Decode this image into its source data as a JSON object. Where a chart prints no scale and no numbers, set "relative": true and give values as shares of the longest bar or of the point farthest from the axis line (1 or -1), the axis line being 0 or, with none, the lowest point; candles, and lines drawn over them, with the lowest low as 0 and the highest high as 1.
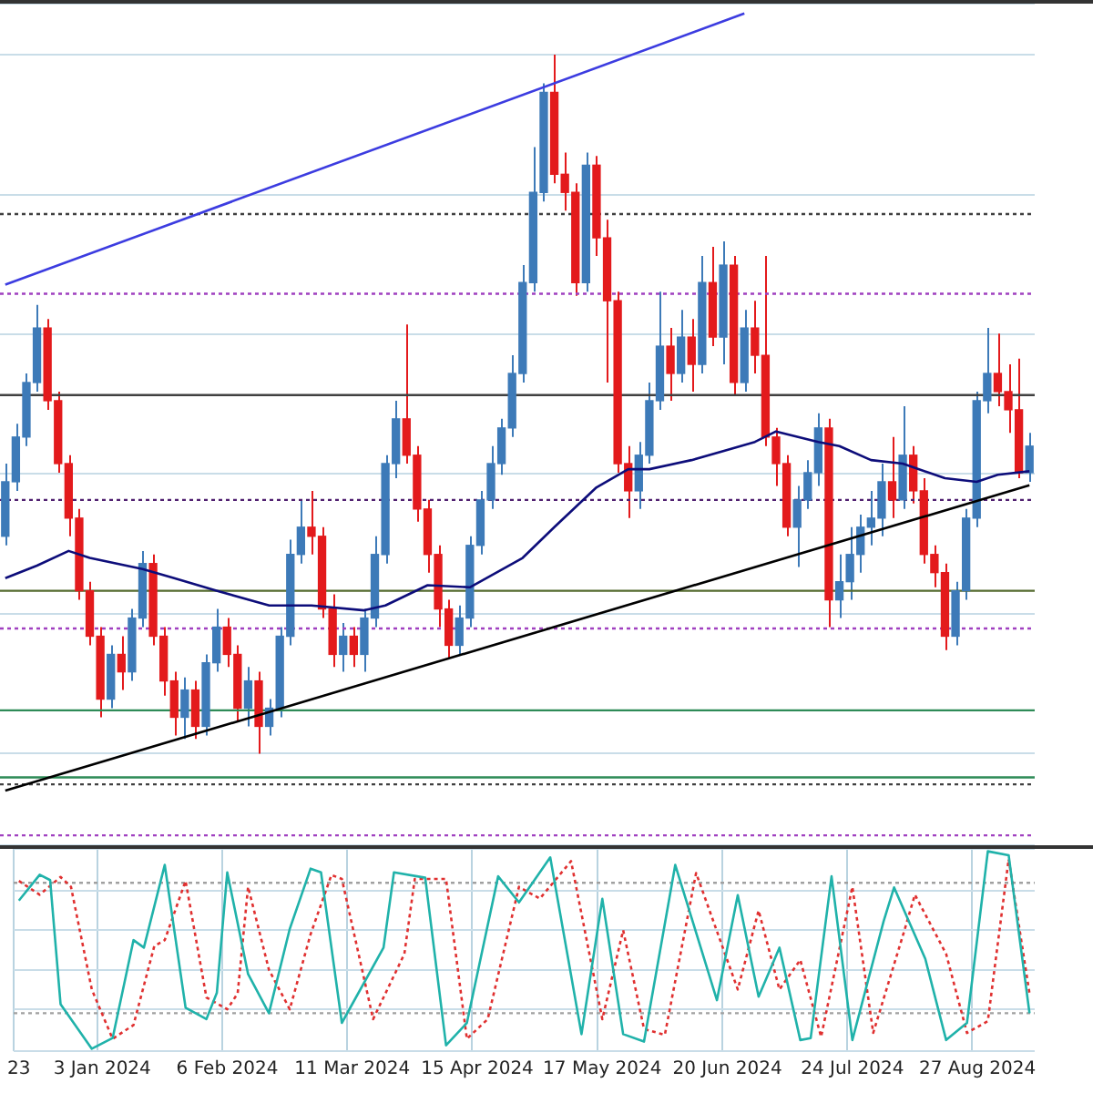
{
  "chart_data": [
    {
      "type": "candlestick",
      "relative": true,
      "grid": true,
      "legend": false,
      "tick_labels": false,
      "marker": "none",
      "categories": [
        null,
        null,
        null,
        null,
        null,
        null,
        null,
        null,
        null,
        null,
        null,
        null,
        null,
        null,
        null,
        null,
        null,
        null,
        null,
        null,
        null,
        null,
        null,
        null,
        null,
        null,
        null,
        null,
        null,
        null,
        null,
        null,
        null,
        null,
        null,
        null,
        null,
        null,
        null,
        null,
        null,
        null,
        null,
        null,
        null,
        null,
        null,
        null,
        null,
        null,
        null,
        null,
        null,
        null,
        null,
        null,
        null,
        null,
        null,
        null,
        null,
        null,
        null,
        null,
        null,
        null,
        null,
        null,
        null,
        null,
        null,
        null,
        null,
        null,
        null,
        null,
        null,
        null,
        null,
        null,
        null,
        null,
        null,
        null,
        null,
        null,
        null,
        null,
        null,
        null,
        null,
        null,
        null,
        null,
        null,
        null,
        null,
        null
      ],
      "ohlc": [
        [
          0.311,
          0.415,
          0.298,
          0.389
        ],
        [
          0.389,
          0.472,
          0.376,
          0.453
        ],
        [
          0.453,
          0.544,
          0.44,
          0.531
        ],
        [
          0.531,
          0.642,
          0.518,
          0.609
        ],
        [
          0.609,
          0.622,
          0.492,
          0.505
        ],
        [
          0.505,
          0.518,
          0.402,
          0.415
        ],
        [
          0.415,
          0.427,
          0.311,
          0.337
        ],
        [
          0.337,
          0.35,
          0.22,
          0.233
        ],
        [
          0.233,
          0.246,
          0.155,
          0.168
        ],
        [
          0.168,
          0.181,
          0.052,
          0.078
        ],
        [
          0.078,
          0.155,
          0.065,
          0.142
        ],
        [
          0.142,
          0.168,
          0.091,
          0.117
        ],
        [
          0.117,
          0.207,
          0.104,
          0.194
        ],
        [
          0.194,
          0.29,
          0.181,
          0.272
        ],
        [
          0.272,
          0.285,
          0.155,
          0.168
        ],
        [
          0.168,
          0.181,
          0.083,
          0.104
        ],
        [
          0.104,
          0.117,
          0.026,
          0.052
        ],
        [
          0.052,
          0.109,
          0.021,
          0.091
        ],
        [
          0.091,
          0.104,
          0.021,
          0.039
        ],
        [
          0.039,
          0.142,
          0.026,
          0.13
        ],
        [
          0.13,
          0.207,
          0.117,
          0.181
        ],
        [
          0.181,
          0.194,
          0.124,
          0.142
        ],
        [
          0.142,
          0.155,
          0.047,
          0.065
        ],
        [
          0.065,
          0.124,
          0.039,
          0.104
        ],
        [
          0.104,
          0.117,
          0,
          0.039
        ],
        [
          0.039,
          0.078,
          0.026,
          0.065
        ],
        [
          0.065,
          0.181,
          0.052,
          0.168
        ],
        [
          0.168,
          0.306,
          0.155,
          0.285
        ],
        [
          0.285,
          0.363,
          0.272,
          0.324
        ],
        [
          0.324,
          0.376,
          0.285,
          0.311
        ],
        [
          0.311,
          0.324,
          0.194,
          0.207
        ],
        [
          0.207,
          0.228,
          0.124,
          0.142
        ],
        [
          0.142,
          0.187,
          0.117,
          0.168
        ],
        [
          0.168,
          0.181,
          0.124,
          0.142
        ],
        [
          0.142,
          0.207,
          0.117,
          0.194
        ],
        [
          0.194,
          0.311,
          0.181,
          0.285
        ],
        [
          0.285,
          0.427,
          0.272,
          0.415
        ],
        [
          0.415,
          0.505,
          0.394,
          0.479
        ],
        [
          0.479,
          0.614,
          0.415,
          0.427
        ],
        [
          0.427,
          0.44,
          0.332,
          0.35
        ],
        [
          0.35,
          0.363,
          0.259,
          0.285
        ],
        [
          0.285,
          0.298,
          0.181,
          0.207
        ],
        [
          0.207,
          0.22,
          0.137,
          0.155
        ],
        [
          0.155,
          0.212,
          0.14,
          0.194
        ],
        [
          0.194,
          0.311,
          0.181,
          0.298
        ],
        [
          0.298,
          0.376,
          0.285,
          0.363
        ],
        [
          0.363,
          0.44,
          0.35,
          0.415
        ],
        [
          0.415,
          0.479,
          0.399,
          0.466
        ],
        [
          0.466,
          0.57,
          0.453,
          0.544
        ],
        [
          0.544,
          0.699,
          0.531,
          0.674
        ],
        [
          0.674,
          0.868,
          0.661,
          0.803
        ],
        [
          0.803,
          0.959,
          0.79,
          0.946
        ],
        [
          0.946,
          1,
          0.816,
          0.829
        ],
        [
          0.829,
          0.86,
          0.777,
          0.803
        ],
        [
          0.803,
          0.816,
          0.655,
          0.674
        ],
        [
          0.674,
          0.86,
          0.661,
          0.842
        ],
        [
          0.842,
          0.855,
          0.712,
          0.738
        ],
        [
          0.738,
          0.764,
          0.531,
          0.648
        ],
        [
          0.648,
          0.661,
          0.402,
          0.415
        ],
        [
          0.415,
          0.44,
          0.337,
          0.376
        ],
        [
          0.376,
          0.446,
          0.35,
          0.427
        ],
        [
          0.427,
          0.531,
          0.415,
          0.505
        ],
        [
          0.505,
          0.661,
          0.492,
          0.583
        ],
        [
          0.583,
          0.609,
          0.505,
          0.544
        ],
        [
          0.544,
          0.635,
          0.531,
          0.596
        ],
        [
          0.596,
          0.622,
          0.518,
          0.557
        ],
        [
          0.557,
          0.712,
          0.544,
          0.674
        ],
        [
          0.674,
          0.725,
          0.583,
          0.596
        ],
        [
          0.596,
          0.733,
          0.557,
          0.699
        ],
        [
          0.699,
          0.712,
          0.513,
          0.531
        ],
        [
          0.531,
          0.635,
          0.518,
          0.609
        ],
        [
          0.609,
          0.648,
          0.544,
          0.57
        ],
        [
          0.57,
          0.712,
          0.44,
          0.453
        ],
        [
          0.453,
          0.466,
          0.383,
          0.415
        ],
        [
          0.415,
          0.427,
          0.311,
          0.324
        ],
        [
          0.324,
          0.383,
          0.267,
          0.363
        ],
        [
          0.363,
          0.42,
          0.35,
          0.402
        ],
        [
          0.402,
          0.487,
          0.383,
          0.466
        ],
        [
          0.466,
          0.479,
          0.181,
          0.22
        ],
        [
          0.22,
          0.285,
          0.194,
          0.246
        ],
        [
          0.246,
          0.324,
          0.22,
          0.285
        ],
        [
          0.285,
          0.342,
          0.259,
          0.324
        ],
        [
          0.324,
          0.376,
          0.298,
          0.337
        ],
        [
          0.337,
          0.415,
          0.311,
          0.389
        ],
        [
          0.389,
          0.453,
          0.337,
          0.363
        ],
        [
          0.363,
          0.497,
          0.35,
          0.427
        ],
        [
          0.427,
          0.44,
          0.358,
          0.376
        ],
        [
          0.376,
          0.394,
          0.272,
          0.285
        ],
        [
          0.285,
          0.298,
          0.238,
          0.259
        ],
        [
          0.259,
          0.272,
          0.148,
          0.168
        ],
        [
          0.168,
          0.246,
          0.155,
          0.233
        ],
        [
          0.233,
          0.35,
          0.22,
          0.337
        ],
        [
          0.337,
          0.518,
          0.324,
          0.505
        ],
        [
          0.505,
          0.609,
          0.487,
          0.544
        ],
        [
          0.544,
          0.601,
          0.497,
          0.518
        ],
        [
          0.518,
          0.557,
          0.459,
          0.492
        ],
        [
          0.492,
          0.565,
          0.394,
          0.402
        ],
        [
          0.402,
          0.459,
          0.389,
          0.44
        ]
      ],
      "colors": [
        "#3d7ab8",
        "#3d7ab8",
        "#3d7ab8",
        "#3d7ab8",
        "#e31a1c",
        "#e31a1c",
        "#e31a1c",
        "#e31a1c",
        "#e31a1c",
        "#e31a1c",
        "#3d7ab8",
        "#e31a1c",
        "#3d7ab8",
        "#3d7ab8",
        "#e31a1c",
        "#e31a1c",
        "#e31a1c",
        "#3d7ab8",
        "#e31a1c",
        "#3d7ab8",
        "#3d7ab8",
        "#e31a1c",
        "#e31a1c",
        "#3d7ab8",
        "#e31a1c",
        "#3d7ab8",
        "#3d7ab8",
        "#3d7ab8",
        "#3d7ab8",
        "#e31a1c",
        "#e31a1c",
        "#e31a1c",
        "#3d7ab8",
        "#e31a1c",
        "#3d7ab8",
        "#3d7ab8",
        "#3d7ab8",
        "#3d7ab8",
        "#e31a1c",
        "#e31a1c",
        "#e31a1c",
        "#e31a1c",
        "#e31a1c",
        "#3d7ab8",
        "#3d7ab8",
        "#3d7ab8",
        "#3d7ab8",
        "#3d7ab8",
        "#3d7ab8",
        "#3d7ab8",
        "#3d7ab8",
        "#3d7ab8",
        "#e31a1c",
        "#e31a1c",
        "#e31a1c",
        "#3d7ab8",
        "#e31a1c",
        "#e31a1c",
        "#e31a1c",
        "#e31a1c",
        "#3d7ab8",
        "#3d7ab8",
        "#3d7ab8",
        "#e31a1c",
        "#3d7ab8",
        "#e31a1c",
        "#3d7ab8",
        "#e31a1c",
        "#3d7ab8",
        "#e31a1c",
        "#3d7ab8",
        "#e31a1c",
        "#e31a1c",
        "#e31a1c",
        "#e31a1c",
        "#3d7ab8",
        "#3d7ab8",
        "#3d7ab8",
        "#e31a1c",
        "#3d7ab8",
        "#3d7ab8",
        "#3d7ab8",
        "#3d7ab8",
        "#3d7ab8",
        "#e31a1c",
        "#3d7ab8",
        "#e31a1c",
        "#e31a1c",
        "#e31a1c",
        "#e31a1c",
        "#3d7ab8",
        "#3d7ab8",
        "#3d7ab8",
        "#3d7ab8",
        "#e31a1c",
        "#e31a1c",
        "#e31a1c",
        "#3d7ab8"
      ],
      "series": [
        {
          "type": "line",
          "color": "#0d0d7a",
          "values": [
            0.251,
            null,
            null,
            0.269,
            null,
            null,
            0.29,
            null,
            0.28,
            null,
            null,
            null,
            null,
            0.264,
            null,
            null,
            0.251,
            null,
            null,
            null,
            0.233,
            null,
            null,
            null,
            null,
            0.212,
            null,
            null,
            null,
            0.212,
            null,
            null,
            null,
            null,
            0.205,
            null,
            0.212,
            null,
            null,
            null,
            0.241,
            null,
            null,
            null,
            0.238,
            null,
            null,
            null,
            null,
            0.28,
            null,
            null,
            0.324,
            null,
            null,
            null,
            0.381,
            null,
            null,
            0.407,
            null,
            0.407,
            null,
            null,
            null,
            0.42,
            null,
            null,
            0.433,
            null,
            null,
            0.446,
            null,
            0.461,
            null,
            null,
            null,
            0.446,
            null,
            0.44,
            null,
            null,
            0.42,
            null,
            null,
            0.415,
            null,
            null,
            null,
            0.394,
            null,
            null,
            0.389,
            null,
            0.399,
            null,
            null,
            0.404
          ]
        },
        {
          "type": "line",
          "color": "#000000",
          "values": [
            -0.053,
            null,
            null,
            null,
            null,
            null,
            null,
            null,
            null,
            null,
            null,
            null,
            null,
            null,
            null,
            null,
            null,
            null,
            null,
            null,
            null,
            null,
            null,
            null,
            null,
            null,
            null,
            null,
            null,
            null,
            null,
            null,
            null,
            null,
            null,
            null,
            null,
            null,
            null,
            null,
            null,
            null,
            null,
            null,
            null,
            null,
            null,
            null,
            null,
            null,
            null,
            null,
            null,
            null,
            null,
            null,
            null,
            null,
            null,
            null,
            null,
            null,
            null,
            null,
            null,
            null,
            null,
            null,
            null,
            null,
            null,
            null,
            null,
            null,
            null,
            null,
            null,
            null,
            null,
            null,
            null,
            null,
            null,
            null,
            null,
            null,
            null,
            null,
            null,
            null,
            null,
            null,
            null,
            null,
            null,
            null,
            null,
            0.384
          ]
        },
        {
          "type": "line",
          "color": "#3c3ce0",
          "values": [
            0.671,
            null,
            null,
            null,
            null,
            null,
            null,
            null,
            null,
            null,
            null,
            null,
            null,
            null,
            null,
            null,
            null,
            null,
            null,
            null,
            null,
            null,
            null,
            null,
            null,
            null,
            null,
            null,
            null,
            null,
            null,
            null,
            null,
            null,
            null,
            null,
            null,
            null,
            null,
            null,
            null,
            null,
            null,
            null,
            null,
            null,
            null,
            null,
            null,
            null,
            null,
            null,
            null,
            null,
            null,
            null,
            null,
            null,
            null,
            null,
            null,
            null,
            null,
            null,
            null,
            null,
            null,
            null,
            null,
            null,
            1.059,
            null,
            null,
            null,
            null,
            null,
            null,
            null,
            null,
            null,
            null,
            null,
            null,
            null,
            null,
            null,
            null,
            null,
            null,
            null,
            null,
            null,
            null,
            null,
            null,
            null,
            null,
            null
          ]
        }
      ],
      "ref_lines": [
        {
          "axis": "y",
          "value": 0.772,
          "color": "#404040",
          "line_style": "dotted"
        },
        {
          "axis": "y",
          "value": 0.658,
          "color": "#a040c0",
          "line_style": "dotted"
        },
        {
          "axis": "y",
          "value": 0.513,
          "color": "#404040",
          "line_style": "solid"
        },
        {
          "axis": "y",
          "value": 0.363,
          "color": "#502070",
          "line_style": "dotted"
        },
        {
          "axis": "y",
          "value": 0.233,
          "color": "#556b2f",
          "line_style": "solid"
        },
        {
          "axis": "y",
          "value": 0.179,
          "color": "#a040c0",
          "line_style": "dotted"
        },
        {
          "axis": "y",
          "value": 0.062,
          "color": "#2e8b57",
          "line_style": "solid"
        },
        {
          "axis": "y",
          "value": -0.034,
          "color": "#2e8b57",
          "line_style": "solid"
        },
        {
          "axis": "y",
          "value": -0.044,
          "color": "#404040",
          "line_style": "dotted"
        },
        {
          "axis": "y",
          "value": -0.117,
          "color": "#a040c0",
          "line_style": "dotted"
        }
      ]
    },
    {
      "type": "line",
      "relative": true,
      "grid": true,
      "legend": false,
      "marker": "none",
      "categories": [
        "23",
        null,
        null,
        null,
        null,
        null,
        null,
        null,
        "3 Jan 2024",
        null,
        null,
        null,
        null,
        null,
        null,
        null,
        null,
        null,
        null,
        null,
        "6 Feb 2024",
        null,
        null,
        null,
        null,
        null,
        null,
        null,
        null,
        null,
        null,
        null,
        "11 Mar 2024",
        null,
        null,
        null,
        null,
        null,
        null,
        null,
        null,
        null,
        null,
        null,
        "15 Apr 2024",
        null,
        null,
        null,
        null,
        null,
        null,
        null,
        null,
        null,
        null,
        null,
        "17 May 2024",
        null,
        null,
        null,
        null,
        null,
        null,
        null,
        null,
        null,
        null,
        null,
        "20 Jun 2024",
        null,
        null,
        null,
        null,
        null,
        null,
        null,
        null,
        null,
        null,
        null,
        "24 Jul 2024",
        null,
        null,
        null,
        null,
        null,
        null,
        null,
        null,
        null,
        null,
        null,
        "27 Aug 2024",
        null,
        null,
        null,
        null,
        null
      ],
      "series": [
        {
          "color": "#20b2aa",
          "line_style": "solid",
          "values": [
            0.75,
            null,
            0.881,
            0.854,
            0.226,
            null,
            null,
            0,
            null,
            0.054,
            null,
            0.55,
            0.512,
            null,
            0.931,
            null,
            0.208,
            null,
            0.15,
            0.283,
            0.893,
            null,
            0.378,
            null,
            0.18,
            null,
            0.607,
            null,
            0.912,
            0.893,
            null,
            0.131,
            null,
            null,
            null,
            0.512,
            0.893,
            null,
            null,
            0.866,
            null,
            0.017,
            null,
            0.131,
            null,
            null,
            0.873,
            null,
            0.741,
            null,
            null,
            0.969,
            null,
            null,
            0.074,
            null,
            0.759,
            null,
            0.074,
            null,
            0.036,
            null,
            null,
            0.931,
            null,
            null,
            null,
            0.246,
            null,
            0.778,
            null,
            0.264,
            null,
            0.512,
            null,
            0.044,
            0.054,
            null,
            0.873,
            null,
            0.044,
            null,
            null,
            0.646,
            0.817,
            null,
            null,
            0.455,
            null,
            0.044,
            null,
            0.131,
            null,
            1,
            null,
            0.98,
            null,
            0.18
          ]
        },
        {
          "color": "#e03030",
          "line_style": "dotted",
          "values": [
            0.85,
            null,
            0.78,
            null,
            0.87,
            0.82,
            null,
            0.3,
            null,
            0.05,
            null,
            0.12,
            null,
            0.52,
            0.55,
            null,
            0.85,
            null,
            0.26,
            null,
            0.2,
            0.28,
            0.82,
            null,
            0.4,
            null,
            0.2,
            null,
            0.58,
            null,
            0.88,
            0.86,
            null,
            null,
            0.15,
            null,
            null,
            0.48,
            0.86,
            null,
            null,
            0.86,
            null,
            0.05,
            null,
            0.15,
            null,
            null,
            0.82,
            null,
            0.76,
            null,
            null,
            0.95,
            null,
            null,
            0.15,
            null,
            0.6,
            null,
            0.1,
            null,
            0.07,
            null,
            null,
            0.89,
            null,
            null,
            null,
            0.3,
            null,
            0.7,
            null,
            0.3,
            null,
            0.45,
            null,
            0.06,
            null,
            null,
            0.82,
            null,
            0.08,
            null,
            null,
            0.6,
            0.78,
            null,
            null,
            0.48,
            null,
            0.08,
            null,
            0.14,
            null,
            0.96,
            null,
            0.28
          ]
        }
      ],
      "ref_lines": [
        {
          "axis": "y",
          "value": 0.84,
          "color": "#a0a0a0",
          "line_style": "dotted"
        },
        {
          "axis": "y",
          "value": 0.18,
          "color": "#a0a0a0",
          "line_style": "dotted"
        }
      ]
    }
  ]
}
